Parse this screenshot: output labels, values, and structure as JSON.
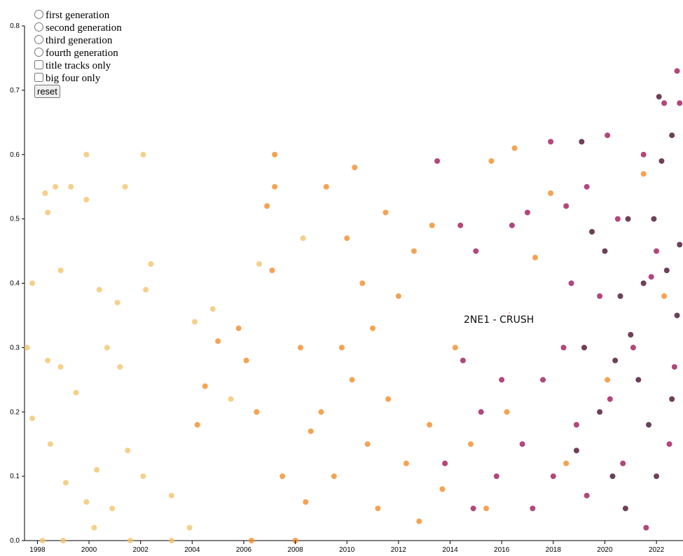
{
  "chart_data": {
    "type": "scatter",
    "xlim": [
      1997.5,
      2023.03
    ],
    "ylim": [
      0,
      0.8
    ],
    "xticks": [
      1998,
      2000,
      2002,
      2004,
      2006,
      2008,
      2010,
      2012,
      2014,
      2016,
      2018,
      2020,
      2022
    ],
    "yticks": [
      {
        "value": 0,
        "label": "0.0"
      },
      0.1,
      0.2,
      0.3,
      0.4,
      0.5,
      0.6,
      0.7,
      0.8
    ],
    "annotation": "2NE1 - CRUSH",
    "series": [
      {
        "name": "first generation",
        "color": "#f2c46d",
        "x": [
          1997.6,
          1997.8,
          1998.3,
          1998.4,
          1998.7,
          1998.9,
          1999.3,
          1999.9,
          1999.9,
          2000.4,
          2001.1,
          2001.4,
          2002.1,
          2002.2,
          2002.4,
          2003.2,
          2003.9,
          1998.4,
          1998.9,
          1999.5,
          2000.7,
          2001.2,
          1998.5,
          1999.1,
          1999.9,
          2000.3,
          2000.9,
          2001.5,
          2002.1,
          1997.8,
          1998.2,
          1999.0,
          2000.2,
          2001.6,
          2004.8,
          2004.1,
          2005.5,
          2008.3,
          2006.6,
          2003.2
        ],
        "values": [
          0.3,
          0.4,
          0.54,
          0.51,
          0.55,
          0.42,
          0.55,
          0.6,
          0.53,
          0.39,
          0.37,
          0.55,
          0.6,
          0.39,
          0.43,
          0.07,
          0.02,
          0.28,
          0.27,
          0.23,
          0.3,
          0.27,
          0.15,
          0.09,
          0.06,
          0.11,
          0.05,
          0.14,
          0.1,
          0.19,
          0,
          0,
          0.02,
          0,
          0.36,
          0.34,
          0.22,
          0.47,
          0.43,
          0
        ]
      },
      {
        "name": "second generation",
        "color": "#f28c28",
        "x": [
          2004.2,
          2004.5,
          2005.0,
          2005.8,
          2006.1,
          2006.5,
          2006.9,
          2007.2,
          2007.2,
          2007.1,
          2008.2,
          2008.6,
          2009.2,
          2010.3,
          2010.0,
          2010.6,
          2011.5,
          2012.0,
          2012.6,
          2013.3,
          2015.6,
          2016.5,
          2017.9,
          2009.0,
          2009.5,
          2010.2,
          2010.8,
          2011.2,
          2011.6,
          2012.3,
          2012.8,
          2013.2,
          2013.7,
          2014.2,
          2014.8,
          2015.4,
          2007.5,
          2008.0,
          2009.8,
          2011.0,
          2016.2,
          2017.3,
          2018.5,
          2020.1,
          2021.5,
          2022.3,
          2006.3,
          2008.4
        ],
        "values": [
          0.18,
          0.24,
          0.31,
          0.33,
          0.28,
          0.2,
          0.52,
          0.6,
          0.55,
          0.42,
          0.3,
          0.17,
          0.55,
          0.58,
          0.47,
          0.4,
          0.51,
          0.38,
          0.45,
          0.49,
          0.59,
          0.61,
          0.54,
          0.2,
          0.1,
          0.25,
          0.15,
          0.05,
          0.22,
          0.12,
          0.03,
          0.18,
          0.08,
          0.3,
          0.15,
          0.05,
          0.1,
          0,
          0.3,
          0.33,
          0.2,
          0.44,
          0.12,
          0.25,
          0.57,
          0.38,
          0,
          0.06
        ]
      },
      {
        "name": "third generation",
        "color": "#a0185a",
        "x": [
          2013.5,
          2014.4,
          2015.0,
          2016.4,
          2017.0,
          2017.9,
          2018.5,
          2019.3,
          2020.1,
          2021.5,
          2022.3,
          2022.8,
          2022.9,
          2014.5,
          2015.2,
          2015.8,
          2016.3,
          2016.8,
          2017.2,
          2017.6,
          2018.0,
          2018.4,
          2018.9,
          2019.3,
          2019.8,
          2020.2,
          2020.7,
          2021.1,
          2021.6,
          2022.0,
          2022.5,
          2013.8,
          2014.9,
          2016.0,
          2018.7,
          2020.5,
          2021.8,
          2022.7
        ],
        "values": [
          0.59,
          0.49,
          0.45,
          0.49,
          0.51,
          0.62,
          0.52,
          0.55,
          0.63,
          0.6,
          0.68,
          0.73,
          0.68,
          0.28,
          0.2,
          0.1,
          0.35,
          0.15,
          0.05,
          0.25,
          0.1,
          0.3,
          0.18,
          0.07,
          0.38,
          0.22,
          0.12,
          0.3,
          0.02,
          0.45,
          0.15,
          0.12,
          0.05,
          0.25,
          0.4,
          0.5,
          0.41,
          0.27
        ]
      },
      {
        "name": "fourth generation",
        "color": "#4a1030",
        "x": [
          2019.1,
          2020.9,
          2022.1,
          2022.2,
          2022.6,
          2019.5,
          2020.0,
          2020.6,
          2021.0,
          2021.3,
          2021.7,
          2022.0,
          2022.4,
          2022.8,
          2019.2,
          2019.8,
          2020.3,
          2020.8,
          2021.5,
          2022.6,
          2018.9,
          2021.9,
          2022.9,
          2020.4
        ],
        "values": [
          0.62,
          0.5,
          0.69,
          0.59,
          0.63,
          0.48,
          0.45,
          0.38,
          0.32,
          0.25,
          0.18,
          0.1,
          0.42,
          0.35,
          0.3,
          0.2,
          0.1,
          0.05,
          0.4,
          0.22,
          0.14,
          0.5,
          0.46,
          0.28
        ]
      }
    ]
  },
  "controls": {
    "title_tracks": "title tracks only",
    "big_four": "big four only",
    "reset": "reset"
  }
}
